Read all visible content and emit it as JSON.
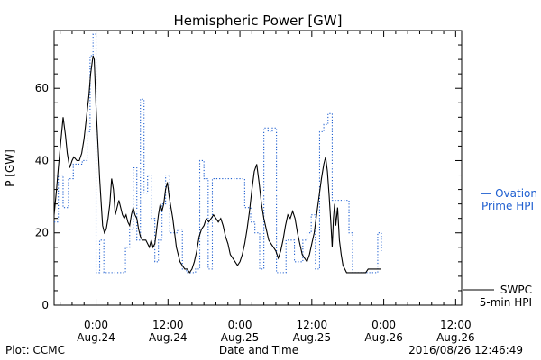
{
  "chart_data": {
    "type": "line",
    "title": "Hemispheric Power [GW]",
    "xlabel": "Date and Time",
    "ylabel": "P [GW]",
    "xlim_hours": [
      -7,
      61
    ],
    "ylim": [
      0,
      76
    ],
    "grid": false,
    "x_ticks": [
      {
        "hour": 0,
        "time": "0:00",
        "date": "Aug.24"
      },
      {
        "hour": 12,
        "time": "12:00",
        "date": "Aug.24"
      },
      {
        "hour": 24,
        "time": "0:00",
        "date": "Aug.25"
      },
      {
        "hour": 36,
        "time": "12:00",
        "date": "Aug.25"
      },
      {
        "hour": 48,
        "time": "0:00",
        "date": "Aug.26"
      },
      {
        "hour": 60,
        "time": "12:00",
        "date": "Aug.26"
      }
    ],
    "y_ticks": [
      0,
      20,
      40,
      60
    ],
    "series": [
      {
        "name": "Ovation Prime HPI",
        "color": "#1f5fd0",
        "style": "dotted-step",
        "label_lines": [
          "— Ovation",
          "Prime HPI"
        ],
        "points": [
          [
            -7,
            23
          ],
          [
            -6.3,
            36
          ],
          [
            -5.5,
            27
          ],
          [
            -4.6,
            35
          ],
          [
            -3.8,
            39
          ],
          [
            -3,
            39
          ],
          [
            -2.3,
            40
          ],
          [
            -1.5,
            48
          ],
          [
            -1,
            69
          ],
          [
            -0.5,
            75
          ],
          [
            0,
            9
          ],
          [
            0.6,
            18
          ],
          [
            1.3,
            9
          ],
          [
            2.5,
            9
          ],
          [
            4,
            9
          ],
          [
            4.9,
            16
          ],
          [
            5.6,
            21
          ],
          [
            6.2,
            38
          ],
          [
            6.8,
            18
          ],
          [
            7.4,
            57
          ],
          [
            8,
            31
          ],
          [
            8.6,
            36
          ],
          [
            9.2,
            24
          ],
          [
            9.8,
            12
          ],
          [
            10.4,
            18
          ],
          [
            11,
            28
          ],
          [
            11.6,
            36
          ],
          [
            12.3,
            20
          ],
          [
            13,
            20
          ],
          [
            13.6,
            21
          ],
          [
            14.4,
            10
          ],
          [
            15.1,
            9
          ],
          [
            15.8,
            9
          ],
          [
            16.6,
            10
          ],
          [
            17.3,
            40
          ],
          [
            18,
            35
          ],
          [
            18.7,
            10
          ],
          [
            19.4,
            35
          ],
          [
            20.1,
            35
          ],
          [
            20.8,
            35
          ],
          [
            21.5,
            35
          ],
          [
            22.8,
            35
          ],
          [
            23.7,
            35
          ],
          [
            24.8,
            27
          ],
          [
            25.8,
            23
          ],
          [
            26.5,
            20
          ],
          [
            27.3,
            10
          ],
          [
            28,
            49
          ],
          [
            28.7,
            48
          ],
          [
            29.4,
            49
          ],
          [
            30.1,
            9
          ],
          [
            31,
            9
          ],
          [
            31.7,
            18
          ],
          [
            32.4,
            18
          ],
          [
            33.1,
            12
          ],
          [
            33.8,
            12
          ],
          [
            34.5,
            18
          ],
          [
            35.2,
            20
          ],
          [
            35.9,
            25
          ],
          [
            36.6,
            10
          ],
          [
            37.3,
            48
          ],
          [
            38,
            50
          ],
          [
            38.7,
            53
          ],
          [
            39.4,
            29
          ],
          [
            40.1,
            29
          ],
          [
            40.8,
            29
          ],
          [
            41.5,
            29
          ],
          [
            42.2,
            20
          ],
          [
            42.8,
            9
          ],
          [
            43.5,
            9
          ],
          [
            44.5,
            9
          ],
          [
            45.5,
            9
          ],
          [
            46.5,
            9
          ],
          [
            47,
            20
          ],
          [
            47.6,
            15
          ]
        ]
      },
      {
        "name": "SWPC 5-min HPI",
        "color": "#000000",
        "style": "solid",
        "label_lines": [
          "SWPC",
          "5-min HPI"
        ],
        "points": [
          [
            -7,
            25
          ],
          [
            -6.6,
            32
          ],
          [
            -6.3,
            38
          ],
          [
            -5.9,
            45
          ],
          [
            -5.5,
            52
          ],
          [
            -5.1,
            47
          ],
          [
            -4.8,
            42
          ],
          [
            -4.4,
            38
          ],
          [
            -4,
            40
          ],
          [
            -3.7,
            41
          ],
          [
            -3.2,
            40
          ],
          [
            -2.8,
            40
          ],
          [
            -2.4,
            42
          ],
          [
            -2,
            46
          ],
          [
            -1.6,
            52
          ],
          [
            -1.2,
            58
          ],
          [
            -0.9,
            64
          ],
          [
            -0.5,
            69
          ],
          [
            -0.3,
            68
          ],
          [
            0,
            55
          ],
          [
            0.3,
            45
          ],
          [
            0.6,
            35
          ],
          [
            0.9,
            27
          ],
          [
            1.1,
            22
          ],
          [
            1.4,
            20
          ],
          [
            1.7,
            21
          ],
          [
            2,
            24
          ],
          [
            2.3,
            28
          ],
          [
            2.6,
            35
          ],
          [
            2.9,
            32
          ],
          [
            3.2,
            25
          ],
          [
            3.5,
            27
          ],
          [
            3.8,
            29
          ],
          [
            4.1,
            27
          ],
          [
            4.4,
            25
          ],
          [
            4.7,
            24
          ],
          [
            5,
            25
          ],
          [
            5.3,
            23
          ],
          [
            5.6,
            22
          ],
          [
            5.9,
            25
          ],
          [
            6.2,
            27
          ],
          [
            6.5,
            25
          ],
          [
            6.8,
            24
          ],
          [
            7.1,
            21
          ],
          [
            7.4,
            19
          ],
          [
            7.7,
            18
          ],
          [
            8,
            18
          ],
          [
            8.3,
            18
          ],
          [
            8.6,
            17
          ],
          [
            8.9,
            16
          ],
          [
            9.2,
            18
          ],
          [
            9.5,
            16
          ],
          [
            9.8,
            17
          ],
          [
            10.1,
            21
          ],
          [
            10.4,
            25
          ],
          [
            10.7,
            28
          ],
          [
            11,
            26
          ],
          [
            11.3,
            28
          ],
          [
            11.6,
            32
          ],
          [
            11.9,
            34
          ],
          [
            12.2,
            30
          ],
          [
            12.5,
            27
          ],
          [
            12.8,
            24
          ],
          [
            13.1,
            20
          ],
          [
            13.4,
            16
          ],
          [
            13.7,
            14
          ],
          [
            14,
            12
          ],
          [
            14.4,
            11
          ],
          [
            14.8,
            10
          ],
          [
            15.2,
            10
          ],
          [
            15.6,
            9
          ],
          [
            16,
            10
          ],
          [
            16.4,
            12
          ],
          [
            16.8,
            15
          ],
          [
            17.2,
            19
          ],
          [
            17.6,
            21
          ],
          [
            18,
            22
          ],
          [
            18.4,
            24
          ],
          [
            18.8,
            23
          ],
          [
            19.2,
            24
          ],
          [
            19.6,
            25
          ],
          [
            20,
            24
          ],
          [
            20.4,
            23
          ],
          [
            20.8,
            24
          ],
          [
            21.2,
            22
          ],
          [
            21.6,
            19
          ],
          [
            22,
            17
          ],
          [
            22.4,
            14
          ],
          [
            22.8,
            13
          ],
          [
            23.2,
            12
          ],
          [
            23.6,
            11
          ],
          [
            24,
            12
          ],
          [
            24.4,
            14
          ],
          [
            24.8,
            17
          ],
          [
            25.2,
            21
          ],
          [
            25.6,
            26
          ],
          [
            26,
            32
          ],
          [
            26.4,
            37
          ],
          [
            26.8,
            39
          ],
          [
            27.2,
            34
          ],
          [
            27.6,
            28
          ],
          [
            28,
            24
          ],
          [
            28.4,
            21
          ],
          [
            28.8,
            18
          ],
          [
            29.2,
            17
          ],
          [
            29.6,
            16
          ],
          [
            30,
            15
          ],
          [
            30.4,
            13
          ],
          [
            30.8,
            15
          ],
          [
            31.2,
            18
          ],
          [
            31.6,
            22
          ],
          [
            32,
            25
          ],
          [
            32.4,
            24
          ],
          [
            32.8,
            26
          ],
          [
            33.2,
            24
          ],
          [
            33.6,
            20
          ],
          [
            34,
            17
          ],
          [
            34.4,
            14
          ],
          [
            34.8,
            13
          ],
          [
            35.2,
            12
          ],
          [
            35.6,
            14
          ],
          [
            36,
            17
          ],
          [
            36.4,
            20
          ],
          [
            36.8,
            25
          ],
          [
            37.2,
            30
          ],
          [
            37.6,
            35
          ],
          [
            38,
            39
          ],
          [
            38.3,
            41
          ],
          [
            38.6,
            37
          ],
          [
            38.9,
            30
          ],
          [
            39.2,
            22
          ],
          [
            39.4,
            16
          ],
          [
            39.6,
            24
          ],
          [
            39.8,
            28
          ],
          [
            40,
            22
          ],
          [
            40.3,
            27
          ],
          [
            40.6,
            18
          ],
          [
            40.9,
            14
          ],
          [
            41.2,
            11
          ],
          [
            41.5,
            10
          ],
          [
            41.8,
            9
          ],
          [
            42.2,
            9
          ],
          [
            42.6,
            9
          ],
          [
            43,
            9
          ],
          [
            43.4,
            9
          ],
          [
            43.8,
            9
          ],
          [
            44.2,
            9
          ],
          [
            44.6,
            9
          ],
          [
            45,
            9
          ],
          [
            45.4,
            10
          ],
          [
            45.8,
            10
          ],
          [
            46.2,
            10
          ],
          [
            46.6,
            10
          ],
          [
            47,
            10
          ],
          [
            47.6,
            10
          ]
        ]
      }
    ]
  },
  "footer": {
    "plot_label": "Plot: CCMC",
    "timestamp": "2016/08/26 12:46:49"
  }
}
